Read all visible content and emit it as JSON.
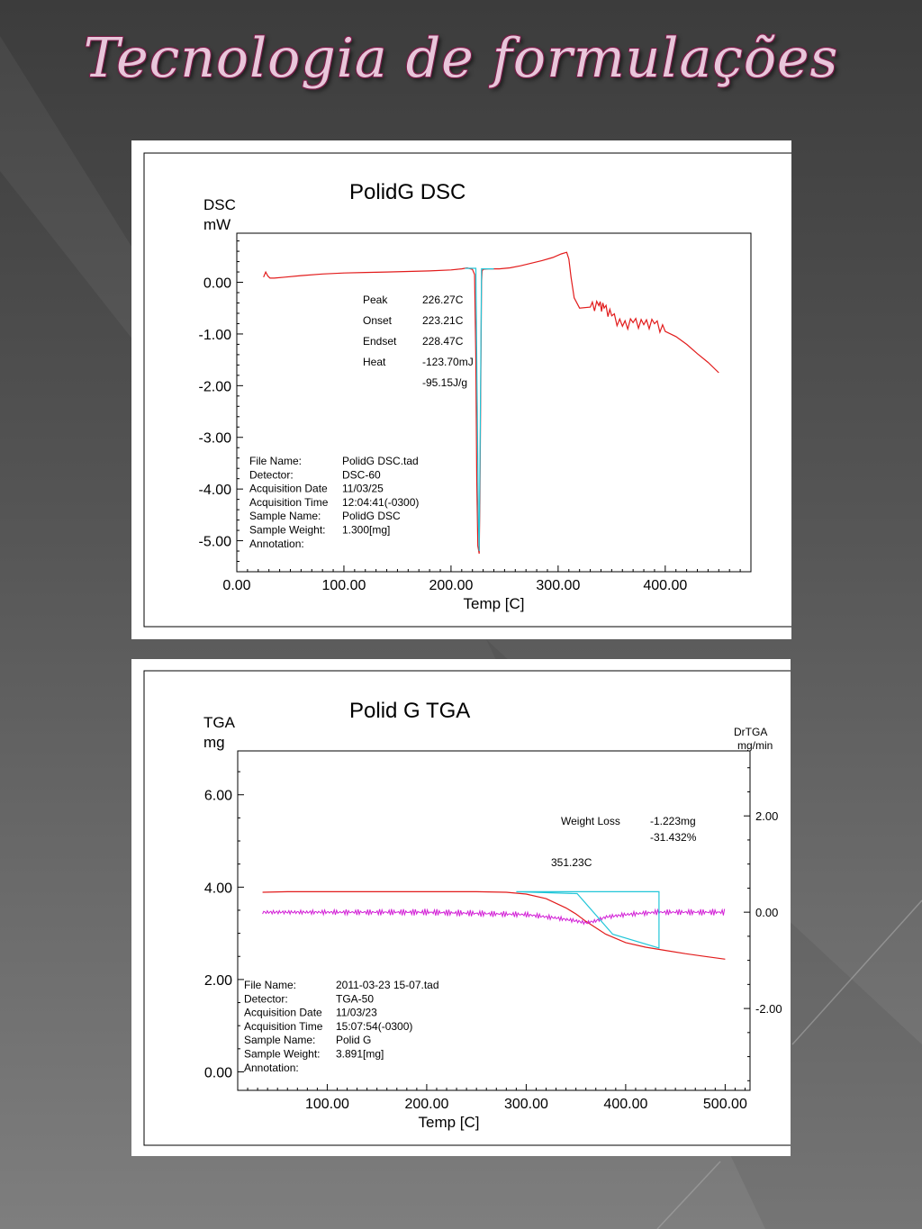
{
  "slide": {
    "title": "Tecnologia de formulações"
  },
  "colors": {
    "curve": "#e21b1b",
    "analysis": "#22c6d8",
    "derivative": "#d21ed6",
    "title_fill": "#e8c6da",
    "title_stroke": "#7a1f4a"
  },
  "chart_data": [
    {
      "type": "line",
      "title": "PolidG DSC",
      "ylabel_lines": [
        "DSC",
        "mW"
      ],
      "xlabel": "Temp  [C]",
      "xlim": [
        0,
        480
      ],
      "ylim": [
        -5.6,
        0.95
      ],
      "xticks": [
        0,
        100,
        200,
        300,
        400
      ],
      "xtick_labels": [
        "0.00",
        "100.00",
        "200.00",
        "300.00",
        "400.00"
      ],
      "yticks": [
        0,
        -1,
        -2,
        -3,
        -4,
        -5
      ],
      "ytick_labels": [
        "0.00",
        "-1.00",
        "-2.00",
        "-3.00",
        "-4.00",
        "-5.00"
      ],
      "series": [
        {
          "role": "curve",
          "x": [
            25,
            27,
            29,
            31,
            35,
            45,
            60,
            80,
            100,
            120,
            140,
            160,
            180,
            200,
            210,
            215,
            220,
            222,
            223.2,
            224,
            225,
            226.27,
            227,
            228.47,
            229,
            230,
            235,
            245,
            255,
            265,
            275,
            285,
            295,
            303,
            308,
            310,
            312,
            315,
            320,
            330,
            338,
            343,
            350,
            360,
            370,
            380,
            390,
            400,
            410,
            420,
            430,
            440,
            450
          ],
          "y": [
            0.1,
            0.2,
            0.12,
            0.08,
            0.08,
            0.1,
            0.13,
            0.16,
            0.18,
            0.19,
            0.2,
            0.21,
            0.22,
            0.24,
            0.26,
            0.28,
            0.25,
            0.15,
            -1.5,
            -3.8,
            -5.1,
            -5.25,
            -4.2,
            0.0,
            0.22,
            0.25,
            0.26,
            0.26,
            0.28,
            0.32,
            0.37,
            0.42,
            0.48,
            0.55,
            0.58,
            0.45,
            0.1,
            -0.3,
            -0.5,
            -0.48,
            -0.45,
            -0.5,
            -0.65,
            -0.85,
            -0.78,
            -0.82,
            -0.8,
            -0.95,
            -1.05,
            -1.2,
            -1.38,
            -1.55,
            -1.75
          ]
        },
        {
          "role": "analysis",
          "x": [
            213,
            223.21,
            224.5,
            225.5,
            226.27,
            227.2,
            228.47,
            240
          ],
          "y": [
            0.27,
            0.27,
            -2.5,
            -4.6,
            -5.2,
            -3.0,
            0.26,
            0.26
          ]
        }
      ],
      "annotation": [
        [
          "Peak",
          "226.27C"
        ],
        [
          "Onset",
          "223.21C"
        ],
        [
          "Endset",
          "228.47C"
        ],
        [
          "Heat",
          "-123.70mJ"
        ],
        [
          "",
          "-95.15J/g"
        ]
      ],
      "info": [
        [
          "File Name:",
          "PolidG DSC.tad"
        ],
        [
          "Detector:",
          "DSC-60"
        ],
        [
          "Acquisition Date",
          "11/03/25"
        ],
        [
          "Acquisition Time",
          "12:04:41(-0300)"
        ],
        [
          "Sample Name:",
          "PolidG DSC"
        ],
        [
          "Sample Weight:",
          "1.300[mg]"
        ],
        [
          "Annotation:",
          ""
        ]
      ]
    },
    {
      "type": "line",
      "title": "Polid G TGA",
      "ylabel_lines": [
        "TGA",
        "mg"
      ],
      "y2label_lines": [
        "DrTGA",
        "mg/min"
      ],
      "xlabel": "Temp  [C]",
      "xlim": [
        10,
        525
      ],
      "ylim": [
        -0.4,
        6.95
      ],
      "y2lim": [
        -3.7,
        3.35
      ],
      "xticks": [
        100,
        200,
        300,
        400,
        500
      ],
      "xtick_labels": [
        "100.00",
        "200.00",
        "300.00",
        "400.00",
        "500.00"
      ],
      "yticks": [
        0,
        2,
        4,
        6
      ],
      "ytick_labels": [
        "0.00",
        "2.00",
        "4.00",
        "6.00"
      ],
      "y2ticks": [
        -2,
        0,
        2
      ],
      "y2tick_labels": [
        "-2.00",
        "0.00",
        "2.00"
      ],
      "series": [
        {
          "role": "curve",
          "axis": "left",
          "x": [
            35,
            60,
            100,
            150,
            200,
            250,
            280,
            300,
            320,
            340,
            350,
            360,
            380,
            400,
            420,
            440,
            460,
            480,
            500
          ],
          "y": [
            3.89,
            3.9,
            3.9,
            3.9,
            3.9,
            3.9,
            3.89,
            3.85,
            3.75,
            3.55,
            3.42,
            3.26,
            2.98,
            2.8,
            2.7,
            2.63,
            2.56,
            2.5,
            2.44
          ]
        },
        {
          "role": "derivative",
          "axis": "right",
          "x": [
            35,
            100,
            200,
            300,
            330,
            350,
            360,
            370,
            380,
            400,
            430,
            460,
            500
          ],
          "y": [
            0.0,
            0.0,
            0.0,
            -0.05,
            -0.12,
            -0.18,
            -0.22,
            -0.18,
            -0.1,
            -0.05,
            0.0,
            0.0,
            0.0
          ]
        },
        {
          "role": "analysis",
          "axis": "left",
          "x": [
            290,
            351.23,
            387,
            433.5,
            433.5,
            433.5,
            290
          ],
          "y": [
            3.9,
            3.86,
            2.98,
            2.68,
            2.68,
            3.9,
            3.9
          ]
        }
      ],
      "annotation": [
        [
          "Weight Loss",
          "-1.223mg"
        ],
        [
          "",
          "-31.432%"
        ],
        [
          "351.23C",
          ""
        ]
      ],
      "info": [
        [
          "File Name:",
          "2011-03-23 15-07.tad"
        ],
        [
          "Detector:",
          "TGA-50"
        ],
        [
          "Acquisition Date",
          "11/03/23"
        ],
        [
          "Acquisition Time",
          "15:07:54(-0300)"
        ],
        [
          "Sample Name:",
          "Polid G"
        ],
        [
          "Sample Weight:",
          "3.891[mg]"
        ],
        [
          "Annotation:",
          ""
        ]
      ]
    }
  ]
}
